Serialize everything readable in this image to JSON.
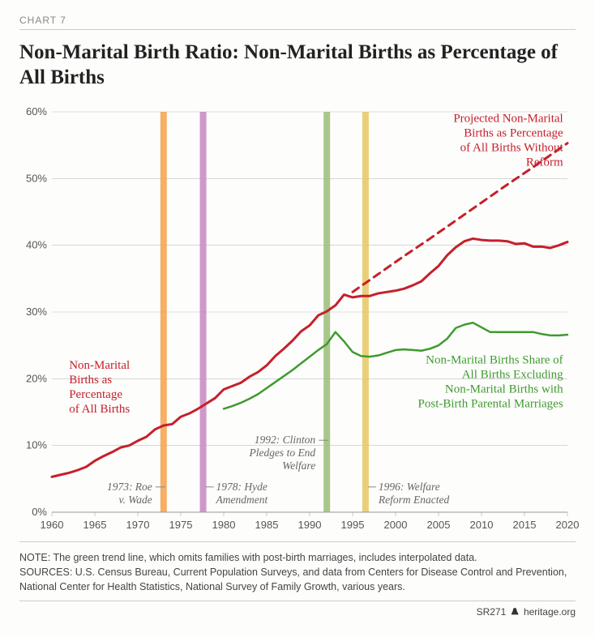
{
  "chart": {
    "number_label": "CHART 7",
    "title": "Non-Marital Birth Ratio: Non-Marital Births as Percentage of All Births",
    "xlim": [
      1960,
      2020
    ],
    "ylim": [
      0,
      60
    ],
    "xtick_step": 5,
    "ytick_step": 10,
    "y_suffix": "%",
    "background_color": "#fdfdfc",
    "grid_color": "#bfbfbf",
    "axis_text_color": "#555555",
    "series": {
      "red_solid": {
        "label": "Non-Marital Births as Percentage of All Births",
        "color": "#c5202a",
        "width": 3,
        "points": [
          [
            1960,
            5.3
          ],
          [
            1961,
            5.6
          ],
          [
            1962,
            5.9
          ],
          [
            1963,
            6.3
          ],
          [
            1964,
            6.8
          ],
          [
            1965,
            7.7
          ],
          [
            1966,
            8.4
          ],
          [
            1967,
            9.0
          ],
          [
            1968,
            9.7
          ],
          [
            1969,
            10.0
          ],
          [
            1970,
            10.7
          ],
          [
            1971,
            11.3
          ],
          [
            1972,
            12.4
          ],
          [
            1973,
            13.0
          ],
          [
            1974,
            13.2
          ],
          [
            1975,
            14.3
          ],
          [
            1976,
            14.8
          ],
          [
            1977,
            15.5
          ],
          [
            1978,
            16.3
          ],
          [
            1979,
            17.1
          ],
          [
            1980,
            18.4
          ],
          [
            1981,
            18.9
          ],
          [
            1982,
            19.4
          ],
          [
            1983,
            20.3
          ],
          [
            1984,
            21.0
          ],
          [
            1985,
            22.0
          ],
          [
            1986,
            23.4
          ],
          [
            1987,
            24.5
          ],
          [
            1988,
            25.7
          ],
          [
            1989,
            27.1
          ],
          [
            1990,
            28.0
          ],
          [
            1991,
            29.5
          ],
          [
            1992,
            30.1
          ],
          [
            1993,
            31.0
          ],
          [
            1994,
            32.6
          ],
          [
            1995,
            32.2
          ],
          [
            1996,
            32.4
          ],
          [
            1997,
            32.4
          ],
          [
            1998,
            32.8
          ],
          [
            1999,
            33.0
          ],
          [
            2000,
            33.2
          ],
          [
            2001,
            33.5
          ],
          [
            2002,
            34.0
          ],
          [
            2003,
            34.6
          ],
          [
            2004,
            35.8
          ],
          [
            2005,
            36.9
          ],
          [
            2006,
            38.5
          ],
          [
            2007,
            39.7
          ],
          [
            2008,
            40.6
          ],
          [
            2009,
            41.0
          ],
          [
            2010,
            40.8
          ],
          [
            2011,
            40.7
          ],
          [
            2012,
            40.7
          ],
          [
            2013,
            40.6
          ],
          [
            2014,
            40.2
          ],
          [
            2015,
            40.3
          ],
          [
            2016,
            39.8
          ],
          [
            2017,
            39.8
          ],
          [
            2018,
            39.6
          ],
          [
            2019,
            40.0
          ],
          [
            2020,
            40.5
          ]
        ]
      },
      "red_dashed": {
        "label": "Projected Non-Marital Births as Percentage of All Births Without Reform",
        "color": "#c5202a",
        "width": 3,
        "dash": "9 7",
        "points": [
          [
            1995,
            33.0
          ],
          [
            1998,
            35.7
          ],
          [
            2001,
            38.4
          ],
          [
            2004,
            41.0
          ],
          [
            2007,
            43.7
          ],
          [
            2010,
            46.4
          ],
          [
            2013,
            49.1
          ],
          [
            2016,
            51.7
          ],
          [
            2019,
            54.4
          ],
          [
            2020,
            55.3
          ]
        ]
      },
      "green_solid": {
        "label": "Non-Marital Births Share of All Births Excluding Non-Marital Births with Post-Birth Parental Marriages",
        "color": "#3f9a2f",
        "width": 2.5,
        "points": [
          [
            1980,
            15.5
          ],
          [
            1981,
            15.9
          ],
          [
            1982,
            16.4
          ],
          [
            1983,
            17.0
          ],
          [
            1984,
            17.7
          ],
          [
            1985,
            18.6
          ],
          [
            1986,
            19.5
          ],
          [
            1987,
            20.4
          ],
          [
            1988,
            21.3
          ],
          [
            1989,
            22.3
          ],
          [
            1990,
            23.3
          ],
          [
            1991,
            24.3
          ],
          [
            1992,
            25.2
          ],
          [
            1993,
            27.0
          ],
          [
            1994,
            25.6
          ],
          [
            1995,
            24.0
          ],
          [
            1996,
            23.4
          ],
          [
            1997,
            23.3
          ],
          [
            1998,
            23.5
          ],
          [
            1999,
            23.9
          ],
          [
            2000,
            24.3
          ],
          [
            2001,
            24.4
          ],
          [
            2002,
            24.3
          ],
          [
            2003,
            24.2
          ],
          [
            2004,
            24.5
          ],
          [
            2005,
            25.0
          ],
          [
            2006,
            26.0
          ],
          [
            2007,
            27.6
          ],
          [
            2008,
            28.1
          ],
          [
            2009,
            28.4
          ],
          [
            2010,
            27.7
          ],
          [
            2011,
            27.0
          ],
          [
            2012,
            27.0
          ],
          [
            2013,
            27.0
          ],
          [
            2014,
            27.0
          ],
          [
            2015,
            27.0
          ],
          [
            2016,
            27.0
          ],
          [
            2017,
            26.7
          ],
          [
            2018,
            26.5
          ],
          [
            2019,
            26.5
          ],
          [
            2020,
            26.6
          ]
        ]
      }
    },
    "vbars": [
      {
        "year": 1973,
        "color": "#f3a24a",
        "width": 8
      },
      {
        "year": 1977.6,
        "color": "#c786c2",
        "width": 8
      },
      {
        "year": 1992,
        "color": "#9bbd77",
        "width": 8
      },
      {
        "year": 1996.5,
        "color": "#e8c760",
        "width": 8
      }
    ],
    "annotations": {
      "red_label": {
        "text": "Non-Marital Births as Percentage of All Births",
        "color": "#c5202a"
      },
      "red_proj_label": {
        "text": "Projected Non-Marital Births as Percentage of All Births Without Reform",
        "color": "#c5202a"
      },
      "green_label": {
        "text": "Non-Marital Births Share of All Births Excluding Non-Marital Births with Post-Birth Parental Marriages",
        "color": "#3f9a2f"
      },
      "ev1973": {
        "text": "1973: Roe v. Wade"
      },
      "ev1978": {
        "text": "1978: Hyde Amendment"
      },
      "ev1992": {
        "text": "1992: Clinton Pledges to End Welfare"
      },
      "ev1996": {
        "text": "1996: Welfare Reform Enacted"
      }
    },
    "note_label": "NOTE:",
    "note_text": " The green trend line, which omits families with post-birth marriages, includes interpolated data.",
    "sources_label": "SOURCES:",
    "sources_text": " U.S. Census Bureau, Current Population Surveys, and data from Centers for Disease Control and Prevention, National Center for Health Statistics, National Survey of Family Growth, various years.",
    "footer_code": "SR271",
    "footer_site": "heritage.org"
  }
}
